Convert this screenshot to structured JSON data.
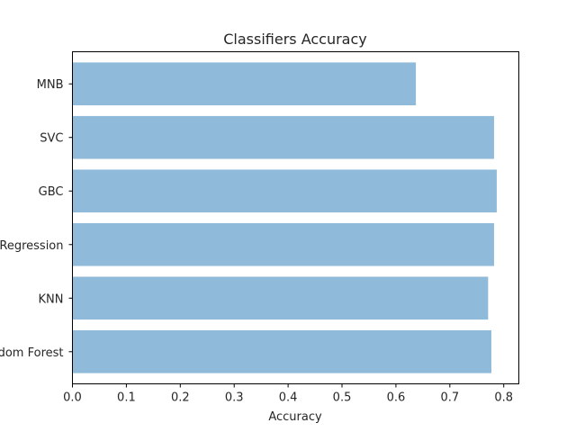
{
  "chart_data": {
    "type": "bar",
    "orientation": "horizontal",
    "title": "Classifiers Accuracy",
    "xlabel": "Accuracy",
    "ylabel": "",
    "categories": [
      "MNB",
      "SVC",
      "GBC",
      "Logistic Regression",
      "KNN",
      "Random Forest"
    ],
    "values": [
      0.637,
      0.782,
      0.787,
      0.782,
      0.771,
      0.777
    ],
    "xlim": [
      0,
      0.828
    ],
    "xticks": [
      0.0,
      0.1,
      0.2,
      0.3,
      0.4,
      0.5,
      0.6,
      0.7,
      0.8
    ],
    "xtick_labels": [
      "0.0",
      "0.1",
      "0.2",
      "0.3",
      "0.4",
      "0.5",
      "0.6",
      "0.7",
      "0.8"
    ],
    "bar_color": "#8fbad9",
    "grid": false,
    "legend": "none"
  }
}
